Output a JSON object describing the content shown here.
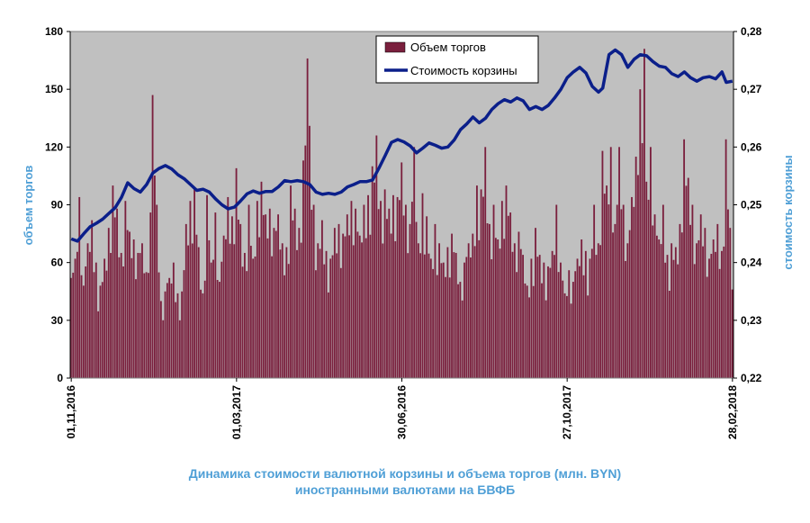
{
  "chart_data": {
    "type": "bar+line",
    "colors": {
      "bars": "#7a1f3d",
      "line": "#0b1f8a",
      "plot_bg": "#c0c0c0",
      "titles": "#4f9fd6"
    },
    "legend": {
      "position": "top-center",
      "items": [
        {
          "label": "Объем торгов",
          "symbol": "bar"
        },
        {
          "label": "Стоимость корзины",
          "symbol": "line"
        }
      ]
    },
    "y_left": {
      "label": "объем торгов",
      "ticks": [
        "0",
        "30",
        "60",
        "90",
        "120",
        "150",
        "180"
      ],
      "range": [
        0,
        180
      ]
    },
    "y_right": {
      "label": "стоимость  корзины",
      "ticks": [
        "0,22",
        "0,23",
        "0,24",
        "0,25",
        "0,26",
        "0,27",
        "0,28"
      ],
      "range": [
        0.22,
        0.28
      ]
    },
    "x_ticks": [
      {
        "label": "01,11,2016",
        "index": 0
      },
      {
        "label": "01,03,2017",
        "index": 79
      },
      {
        "label": "30,06,2016",
        "index": 158
      },
      {
        "label": "27,10,2017",
        "index": 237
      },
      {
        "label": "28,02,2018",
        "index": 316
      }
    ],
    "n_days": 317,
    "bar_anchors": [
      [
        0,
        52
      ],
      [
        2,
        62
      ],
      [
        4,
        94
      ],
      [
        6,
        48
      ],
      [
        8,
        70
      ],
      [
        10,
        82
      ],
      [
        12,
        60
      ],
      [
        14,
        48
      ],
      [
        16,
        62
      ],
      [
        18,
        78
      ],
      [
        20,
        100
      ],
      [
        22,
        88
      ],
      [
        24,
        65
      ],
      [
        26,
        92
      ],
      [
        28,
        76
      ],
      [
        30,
        72
      ],
      [
        32,
        65
      ],
      [
        34,
        70
      ],
      [
        36,
        55
      ],
      [
        38,
        86
      ],
      [
        39,
        147
      ],
      [
        41,
        90
      ],
      [
        43,
        40
      ],
      [
        45,
        45
      ],
      [
        47,
        52
      ],
      [
        49,
        60
      ],
      [
        51,
        44
      ],
      [
        53,
        45
      ],
      [
        55,
        80
      ],
      [
        57,
        92
      ],
      [
        59,
        98
      ],
      [
        61,
        68
      ],
      [
        63,
        44
      ],
      [
        65,
        95
      ],
      [
        67,
        60
      ],
      [
        69,
        86
      ],
      [
        71,
        50
      ],
      [
        73,
        74
      ],
      [
        75,
        94
      ],
      [
        77,
        84
      ],
      [
        79,
        109
      ],
      [
        81,
        80
      ],
      [
        83,
        65
      ],
      [
        85,
        90
      ],
      [
        87,
        62
      ],
      [
        89,
        92
      ],
      [
        91,
        102
      ],
      [
        93,
        85
      ],
      [
        95,
        88
      ],
      [
        97,
        78
      ],
      [
        99,
        85
      ],
      [
        101,
        70
      ],
      [
        103,
        68
      ],
      [
        105,
        100
      ],
      [
        107,
        88
      ],
      [
        109,
        78
      ],
      [
        111,
        113
      ],
      [
        113,
        166
      ],
      [
        114,
        131
      ],
      [
        116,
        90
      ],
      [
        118,
        70
      ],
      [
        120,
        82
      ],
      [
        122,
        66
      ],
      [
        124,
        62
      ],
      [
        126,
        78
      ],
      [
        128,
        80
      ],
      [
        130,
        75
      ],
      [
        132,
        85
      ],
      [
        134,
        92
      ],
      [
        136,
        88
      ],
      [
        138,
        74
      ],
      [
        140,
        90
      ],
      [
        142,
        95
      ],
      [
        144,
        110
      ],
      [
        146,
        126
      ],
      [
        148,
        92
      ],
      [
        150,
        98
      ],
      [
        152,
        88
      ],
      [
        154,
        95
      ],
      [
        156,
        94
      ],
      [
        158,
        112
      ],
      [
        160,
        90
      ],
      [
        162,
        80
      ],
      [
        164,
        120
      ],
      [
        166,
        70
      ],
      [
        168,
        96
      ],
      [
        170,
        84
      ],
      [
        172,
        62
      ],
      [
        174,
        80
      ],
      [
        176,
        70
      ],
      [
        178,
        60
      ],
      [
        180,
        68
      ],
      [
        182,
        75
      ],
      [
        184,
        65
      ],
      [
        186,
        50
      ],
      [
        188,
        60
      ],
      [
        190,
        70
      ],
      [
        192,
        75
      ],
      [
        194,
        100
      ],
      [
        196,
        98
      ],
      [
        198,
        120
      ],
      [
        200,
        80
      ],
      [
        202,
        90
      ],
      [
        204,
        72
      ],
      [
        206,
        92
      ],
      [
        208,
        100
      ],
      [
        210,
        86
      ],
      [
        212,
        70
      ],
      [
        214,
        76
      ],
      [
        216,
        64
      ],
      [
        218,
        48
      ],
      [
        220,
        62
      ],
      [
        222,
        78
      ],
      [
        224,
        64
      ],
      [
        226,
        60
      ],
      [
        228,
        58
      ],
      [
        230,
        66
      ],
      [
        232,
        90
      ],
      [
        234,
        60
      ],
      [
        236,
        44
      ],
      [
        238,
        56
      ],
      [
        240,
        50
      ],
      [
        242,
        62
      ],
      [
        244,
        72
      ],
      [
        246,
        66
      ],
      [
        248,
        62
      ],
      [
        250,
        90
      ],
      [
        252,
        70
      ],
      [
        254,
        118
      ],
      [
        256,
        100
      ],
      [
        258,
        120
      ],
      [
        260,
        80
      ],
      [
        262,
        120
      ],
      [
        264,
        90
      ],
      [
        266,
        70
      ],
      [
        268,
        94
      ],
      [
        270,
        115
      ],
      [
        272,
        150
      ],
      [
        274,
        171
      ],
      [
        275,
        102
      ],
      [
        277,
        120
      ],
      [
        279,
        85
      ],
      [
        281,
        72
      ],
      [
        283,
        90
      ],
      [
        285,
        64
      ],
      [
        287,
        70
      ],
      [
        289,
        68
      ],
      [
        291,
        80
      ],
      [
        293,
        124
      ],
      [
        295,
        104
      ],
      [
        297,
        90
      ],
      [
        299,
        70
      ],
      [
        301,
        85
      ],
      [
        303,
        78
      ],
      [
        305,
        62
      ],
      [
        307,
        72
      ],
      [
        309,
        80
      ],
      [
        311,
        66
      ],
      [
        313,
        124
      ],
      [
        315,
        78
      ],
      [
        316,
        46
      ]
    ],
    "line_anchors": [
      [
        0,
        0.2441
      ],
      [
        3,
        0.2437
      ],
      [
        6,
        0.245
      ],
      [
        9,
        0.2462
      ],
      [
        12,
        0.2468
      ],
      [
        15,
        0.2475
      ],
      [
        18,
        0.2485
      ],
      [
        21,
        0.2495
      ],
      [
        24,
        0.2513
      ],
      [
        27,
        0.2538
      ],
      [
        30,
        0.2528
      ],
      [
        33,
        0.2522
      ],
      [
        36,
        0.2535
      ],
      [
        39,
        0.2555
      ],
      [
        42,
        0.2563
      ],
      [
        45,
        0.2568
      ],
      [
        48,
        0.2562
      ],
      [
        51,
        0.2552
      ],
      [
        54,
        0.2545
      ],
      [
        57,
        0.2535
      ],
      [
        60,
        0.2525
      ],
      [
        63,
        0.2527
      ],
      [
        66,
        0.2522
      ],
      [
        69,
        0.251
      ],
      [
        72,
        0.25
      ],
      [
        75,
        0.2493
      ],
      [
        78,
        0.2496
      ],
      [
        81,
        0.2507
      ],
      [
        84,
        0.2519
      ],
      [
        87,
        0.2524
      ],
      [
        90,
        0.252
      ],
      [
        93,
        0.2523
      ],
      [
        96,
        0.2523
      ],
      [
        99,
        0.2531
      ],
      [
        102,
        0.2542
      ],
      [
        105,
        0.254
      ],
      [
        108,
        0.2542
      ],
      [
        111,
        0.254
      ],
      [
        114,
        0.2535
      ],
      [
        117,
        0.2522
      ],
      [
        120,
        0.2518
      ],
      [
        123,
        0.252
      ],
      [
        126,
        0.2518
      ],
      [
        129,
        0.2522
      ],
      [
        132,
        0.2531
      ],
      [
        135,
        0.2535
      ],
      [
        138,
        0.254
      ],
      [
        141,
        0.254
      ],
      [
        144,
        0.2543
      ],
      [
        147,
        0.2563
      ],
      [
        150,
        0.2585
      ],
      [
        153,
        0.2608
      ],
      [
        156,
        0.2613
      ],
      [
        159,
        0.2609
      ],
      [
        162,
        0.2602
      ],
      [
        165,
        0.259
      ],
      [
        168,
        0.2598
      ],
      [
        171,
        0.2607
      ],
      [
        174,
        0.2603
      ],
      [
        177,
        0.2598
      ],
      [
        180,
        0.26
      ],
      [
        183,
        0.2612
      ],
      [
        186,
        0.263
      ],
      [
        189,
        0.264
      ],
      [
        192,
        0.2652
      ],
      [
        195,
        0.2642
      ],
      [
        198,
        0.265
      ],
      [
        201,
        0.2665
      ],
      [
        204,
        0.2675
      ],
      [
        207,
        0.2682
      ],
      [
        210,
        0.2678
      ],
      [
        213,
        0.2685
      ],
      [
        216,
        0.268
      ],
      [
        219,
        0.2665
      ],
      [
        222,
        0.267
      ],
      [
        225,
        0.2665
      ],
      [
        228,
        0.2672
      ],
      [
        231,
        0.2685
      ],
      [
        234,
        0.27
      ],
      [
        237,
        0.272
      ],
      [
        240,
        0.273
      ],
      [
        243,
        0.2738
      ],
      [
        246,
        0.2728
      ],
      [
        249,
        0.2705
      ],
      [
        252,
        0.2695
      ],
      [
        254,
        0.2702
      ],
      [
        257,
        0.276
      ],
      [
        260,
        0.2768
      ],
      [
        263,
        0.276
      ],
      [
        266,
        0.2738
      ],
      [
        269,
        0.2752
      ],
      [
        272,
        0.276
      ],
      [
        275,
        0.2758
      ],
      [
        278,
        0.2748
      ],
      [
        281,
        0.274
      ],
      [
        284,
        0.2738
      ],
      [
        287,
        0.2727
      ],
      [
        290,
        0.2722
      ],
      [
        293,
        0.273
      ],
      [
        296,
        0.272
      ],
      [
        299,
        0.2714
      ],
      [
        302,
        0.272
      ],
      [
        305,
        0.2722
      ],
      [
        308,
        0.2718
      ],
      [
        311,
        0.273
      ],
      [
        313,
        0.2712
      ],
      [
        316,
        0.2714
      ]
    ]
  },
  "caption": {
    "line1": "Динамика  стоимости валютной корзины и объема торгов (млн.  BYN)",
    "line2": "иностранными валютами на БВФБ"
  }
}
